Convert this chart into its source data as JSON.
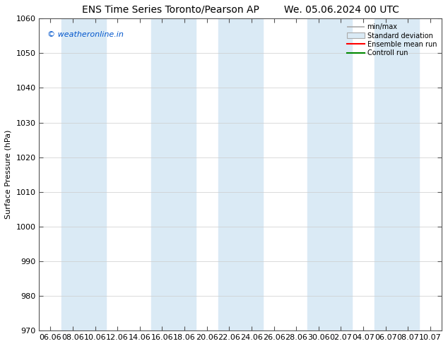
{
  "title_left": "ENS Time Series Toronto/Pearson AP",
  "title_right": "We. 05.06.2024 00 UTC",
  "ylabel": "Surface Pressure (hPa)",
  "ylim": [
    970,
    1060
  ],
  "yticks": [
    970,
    980,
    990,
    1000,
    1010,
    1020,
    1030,
    1040,
    1050,
    1060
  ],
  "xtick_labels": [
    "06.06",
    "08.06",
    "10.06",
    "12.06",
    "14.06",
    "16.06",
    "18.06",
    "20.06",
    "22.06",
    "24.06",
    "26.06",
    "28.06",
    "30.06",
    "02.07",
    "04.07",
    "06.07",
    "08.07",
    "10.07"
  ],
  "watermark": "© weatheronline.in",
  "watermark_color": "#0055cc",
  "bg_color": "#ffffff",
  "band_color": "#daeaf5",
  "band_indices": [
    1,
    2,
    7,
    8,
    11,
    12,
    15,
    16
  ],
  "legend_items": [
    "min/max",
    "Standard deviation",
    "Ensemble mean run",
    "Controll run"
  ],
  "title_fontsize": 10,
  "axis_fontsize": 8,
  "tick_fontsize": 8
}
